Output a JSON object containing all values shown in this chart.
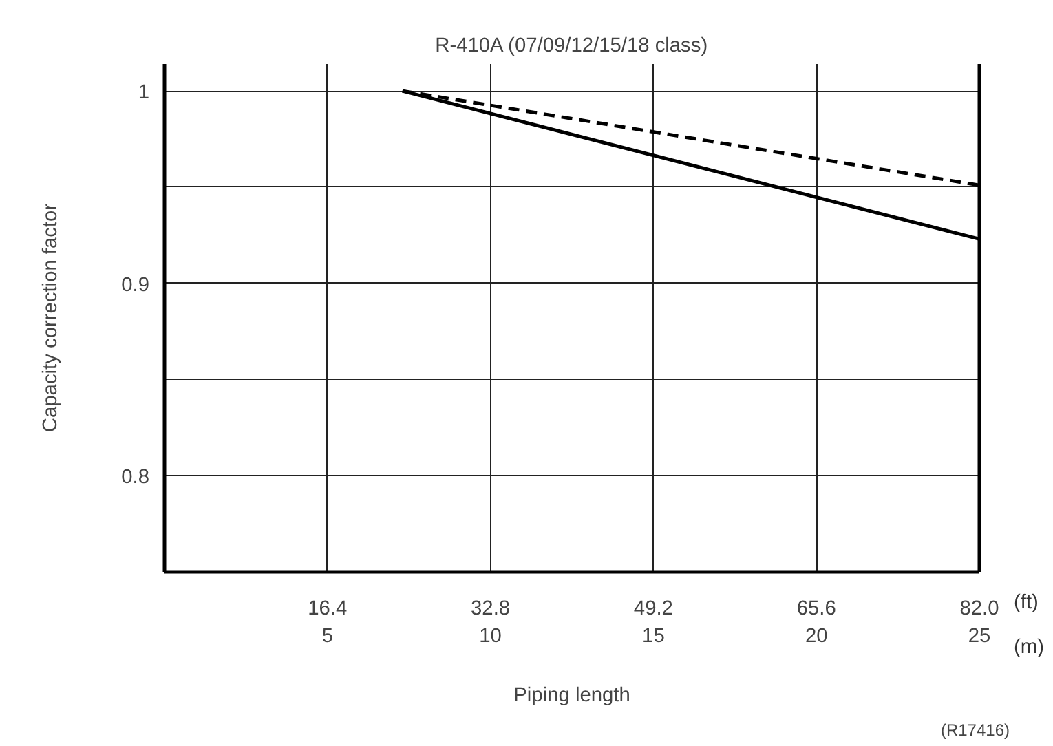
{
  "chart_data": {
    "type": "line",
    "title": "R-410A (07/09/12/15/18 class)",
    "xlabel": "Piping length",
    "ylabel": "Capacity correction factor",
    "xlim": [
      0,
      25
    ],
    "xticks": [
      5,
      10,
      15,
      20,
      25
    ],
    "x2lim": [
      0,
      82.0
    ],
    "x2ticks": [
      16.4,
      32.8,
      49.2,
      65.6,
      {
        "value": 82.0,
        "label": "82.0"
      }
    ],
    "ylim": [
      0.75,
      1.014
    ],
    "yticks": [
      {
        "value": 0.8,
        "label": "0.8"
      },
      {
        "value": 0.85,
        "label": null
      },
      {
        "value": 0.9,
        "label": "0.9"
      },
      {
        "value": 0.95,
        "label": null
      },
      1
    ],
    "grid": true,
    "marker": "none",
    "x": [
      7.3,
      25
    ],
    "series": [
      {
        "color": "#000000",
        "line_style": "solid",
        "values": [
          1.0,
          0.923
        ]
      },
      {
        "color": "#000000",
        "line_style": "dashed",
        "values": [
          1.0,
          0.951
        ]
      }
    ],
    "annotations": [
      "(ft)",
      "(m)",
      "(R17416)"
    ]
  }
}
